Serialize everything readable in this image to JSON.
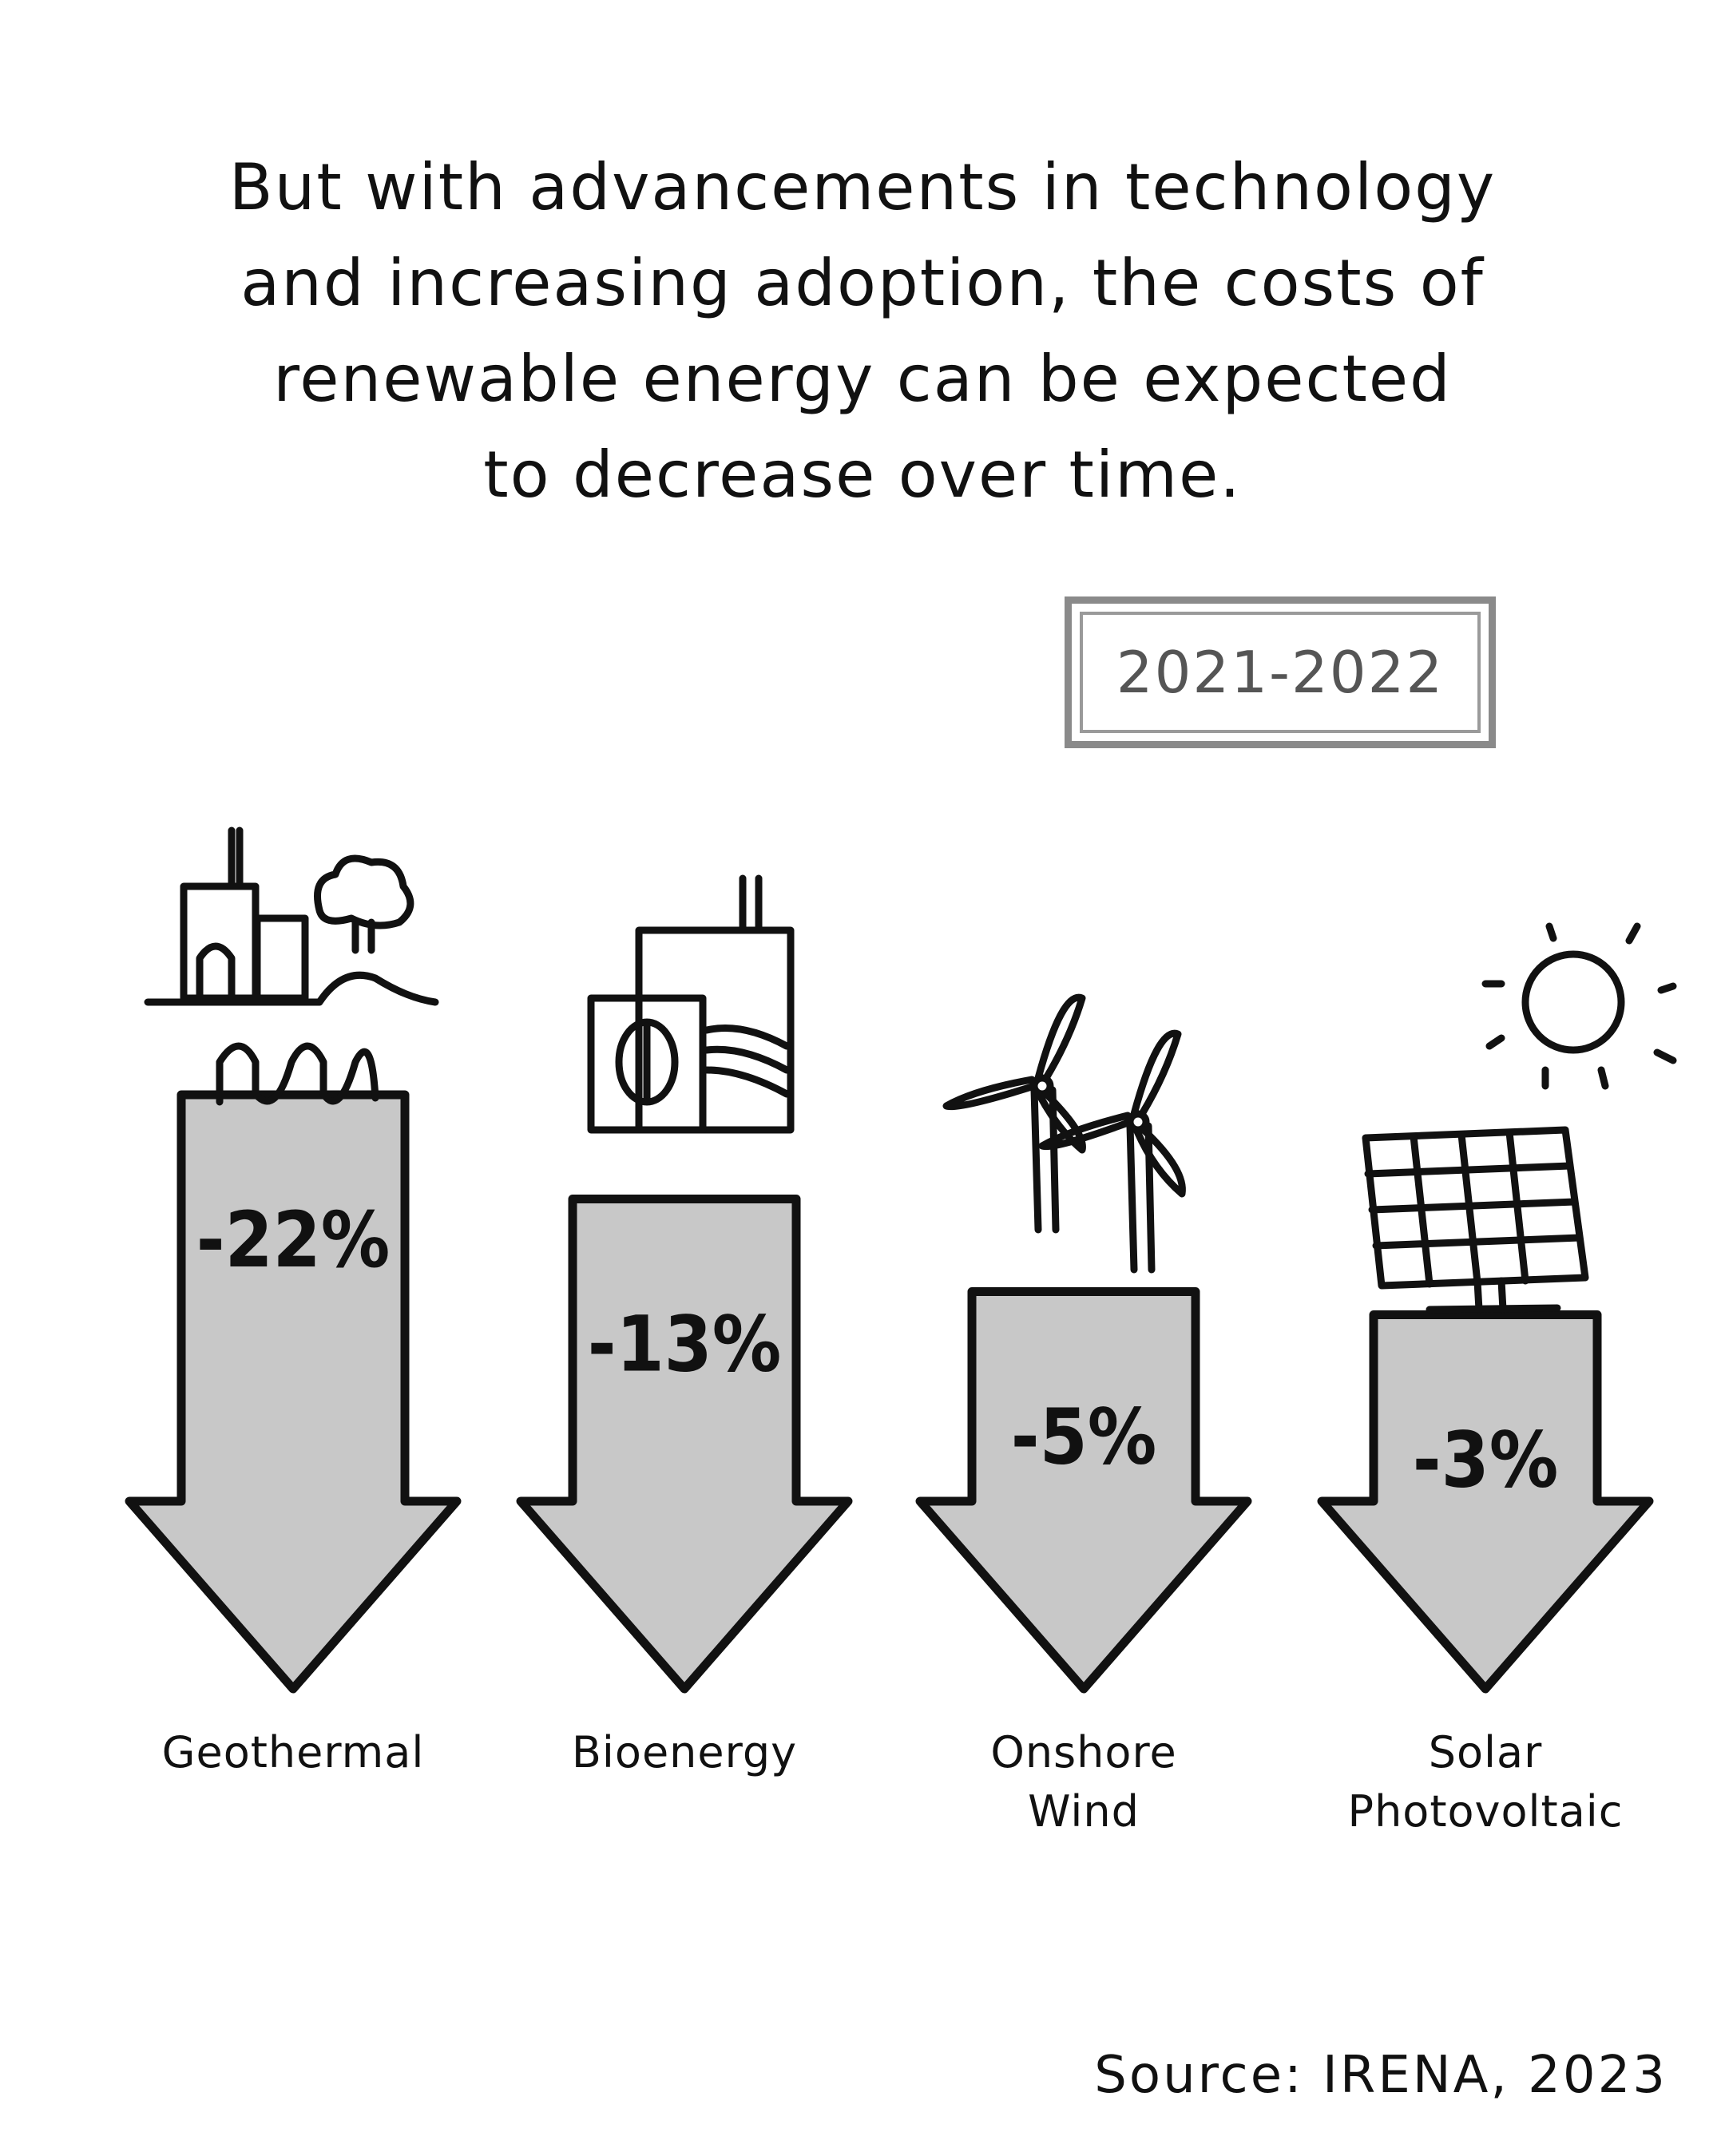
{
  "headline": {
    "lines": [
      "But with advancements in technology",
      "and increasing adoption, the costs of",
      "renewable energy can be expected",
      "to decrease over time."
    ]
  },
  "period": "2021-2022",
  "source": "Source: IRENA, 2023",
  "colors": {
    "arrow_fill": "#c8c8c8",
    "stroke": "#111111",
    "box": "#8a8a8a"
  },
  "chart_data": {
    "type": "bar",
    "orientation": "downward arrows",
    "categories": [
      "Geothermal",
      "Bioenergy",
      "Onshore Wind",
      "Solar Photovoltaic"
    ],
    "category_lines": [
      [
        "Geothermal"
      ],
      [
        "Bioenergy"
      ],
      [
        "Onshore",
        "Wind"
      ],
      [
        "Solar",
        "Photovoltaic"
      ]
    ],
    "values": [
      -22,
      -13,
      -5,
      -3
    ],
    "value_labels": [
      "-22%",
      "-13%",
      "-5%",
      "-3%"
    ],
    "unit": "%",
    "icons": [
      "geothermal-plant-icon",
      "bioenergy-plant-icon",
      "wind-turbines-icon",
      "solar-panel-icon"
    ]
  }
}
